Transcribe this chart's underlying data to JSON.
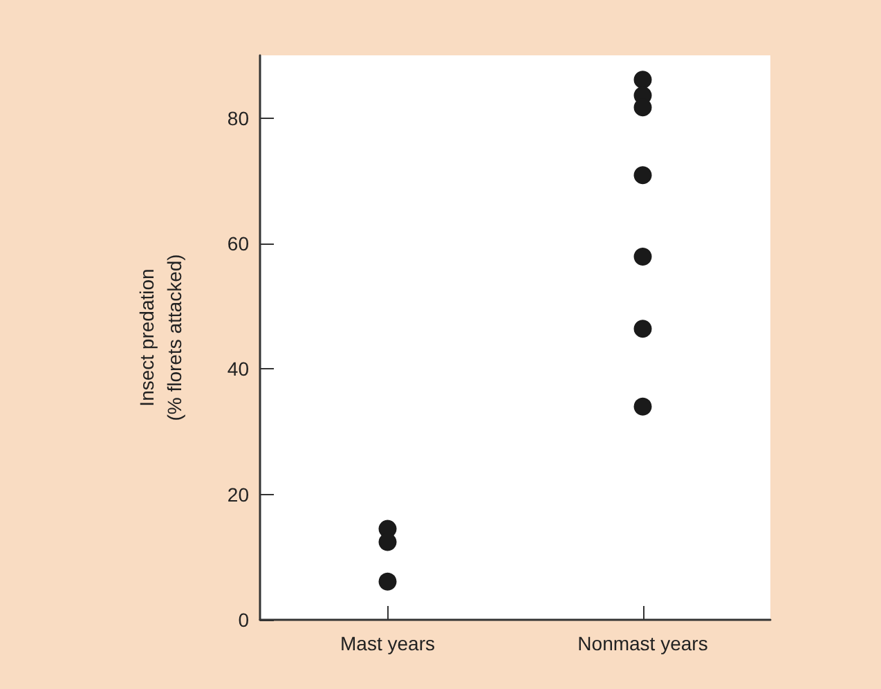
{
  "chart_data": {
    "type": "scatter",
    "ylabel": "Insect predation\n(% florets attacked)",
    "categories": [
      "Mast years",
      "Nonmast years"
    ],
    "series": [
      {
        "color": "#1a1a1a",
        "x": [
          "Mast years",
          "Mast years",
          "Mast years",
          "Nonmast years",
          "Nonmast years",
          "Nonmast years",
          "Nonmast years",
          "Nonmast years",
          "Nonmast years",
          "Nonmast years"
        ],
        "values": [
          14.5,
          12.4,
          6.1,
          86.1,
          83.6,
          81.7,
          70.9,
          57.9,
          46.4,
          34.0
        ]
      }
    ],
    "ylim": [
      0,
      90
    ],
    "yticks": [
      0,
      20,
      40,
      60,
      80
    ],
    "marker": "circle",
    "grid": false
  }
}
